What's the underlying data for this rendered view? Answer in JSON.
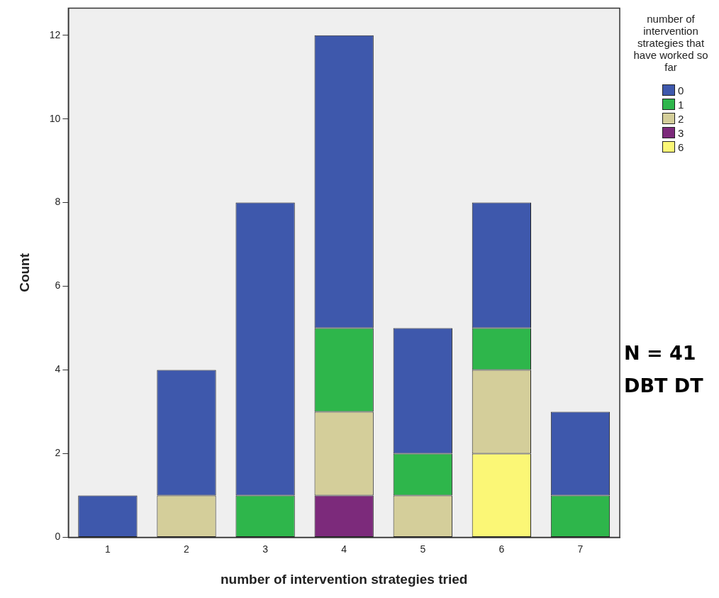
{
  "chart_data": {
    "type": "bar",
    "stacked": true,
    "xlabel": "number of intervention strategies tried",
    "ylabel": "Count",
    "legend_title": "number of intervention strategies that have worked so far",
    "legend": "right",
    "grid": false,
    "categories": [
      "1",
      "2",
      "3",
      "4",
      "5",
      "6",
      "7"
    ],
    "ylim": [
      0,
      12.65
    ],
    "yticks": [
      0,
      2,
      4,
      6,
      8,
      10,
      12
    ],
    "series": [
      {
        "name": "6",
        "color": "#fbf776",
        "values": [
          null,
          null,
          null,
          null,
          null,
          2,
          null
        ]
      },
      {
        "name": "3",
        "color": "#7c2a7b",
        "values": [
          null,
          null,
          null,
          1,
          null,
          null,
          null
        ]
      },
      {
        "name": "2",
        "color": "#d4ce9a",
        "values": [
          null,
          1,
          null,
          2,
          1,
          2,
          null
        ]
      },
      {
        "name": "1",
        "color": "#2eb64b",
        "values": [
          null,
          null,
          1,
          2,
          1,
          1,
          1
        ]
      },
      {
        "name": "0",
        "color": "#3e58ac",
        "values": [
          1,
          3,
          7,
          7,
          3,
          3,
          2
        ]
      }
    ],
    "annotations": [
      "N = 41",
      "DBT DT"
    ]
  }
}
